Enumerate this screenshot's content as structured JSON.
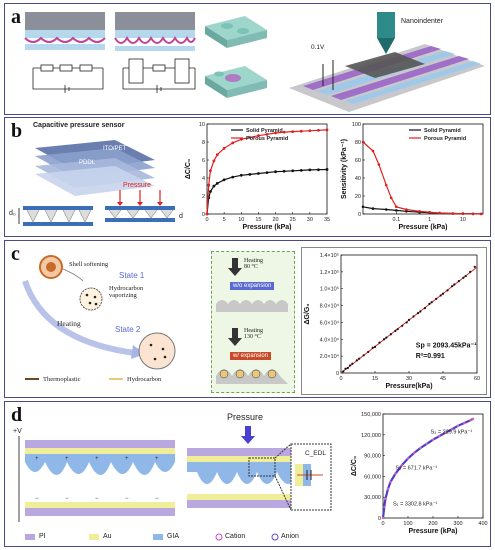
{
  "panels": {
    "a": {
      "letter": "a",
      "nanoindenter_label": "Nanoindenter",
      "voltage_label": "0.1V",
      "circuit1": [
        "R",
        "R",
        "R"
      ],
      "circuit2": [
        "R",
        "R",
        "R"
      ]
    },
    "b": {
      "letter": "b",
      "sensor_title": "Capacitive pressure sensor",
      "layer1": "ITO/PET",
      "layer2": "PDDL",
      "pressure_label": "Pressure",
      "d0_label": "d₀",
      "d_label": "d"
    },
    "c": {
      "letter": "c",
      "shell_softening": "Shell softening",
      "state1": "State 1",
      "hydrocarbon_vaporizing": "Hydrocarbon\nvaporizing",
      "heating": "Heating",
      "state2": "State 2",
      "heating_80": "Heating\n80 °C",
      "wo_expansion": "w/o expansion",
      "heating_130": "Heating\n130 °C",
      "w_expansion": "w/ expansion",
      "legend_thermoplastic": "Thermoplastic",
      "legend_hydrocarbon": "Hydrocarbon"
    },
    "d": {
      "letter": "d",
      "plus_v": "+V",
      "pressure_label": "Pressure",
      "cedl_label": "C_EDL",
      "legend": [
        "PI",
        "Au",
        "GIA",
        "Cation",
        "Anion"
      ]
    }
  },
  "colors": {
    "border": "#4a4a8a",
    "black_series": "#111111",
    "red_series": "#e02020",
    "purple_pi": "#b9a8e0",
    "yellow_au": "#f1ee9a",
    "blue_gia": "#8fb8e8"
  },
  "chart_data": [
    {
      "id": "b1",
      "type": "line",
      "xlabel": "Pressure (kPa)",
      "ylabel": "ΔC/C₀",
      "xlim": [
        0,
        35
      ],
      "ylim": [
        0,
        10
      ],
      "xticks": [
        "0",
        "5",
        "10",
        "15",
        "20",
        "25",
        "30",
        "35"
      ],
      "yticks": [
        "0",
        "2",
        "4",
        "6",
        "8",
        "10"
      ],
      "series": [
        {
          "name": "Solid Pyramid",
          "color": "#111111",
          "x": [
            0,
            0.5,
            1,
            2,
            3,
            5,
            7.5,
            10,
            12.5,
            15,
            17.5,
            20,
            22.5,
            25,
            27.5,
            30,
            32.5,
            35
          ],
          "y": [
            0,
            1.8,
            2.5,
            3.1,
            3.4,
            3.8,
            4.1,
            4.3,
            4.4,
            4.5,
            4.6,
            4.7,
            4.75,
            4.8,
            4.85,
            4.9,
            4.92,
            4.95
          ]
        },
        {
          "name": "Porous Pyramid",
          "color": "#e02020",
          "x": [
            0,
            0.5,
            1,
            2,
            3,
            5,
            7.5,
            10,
            12.5,
            15,
            17.5,
            20,
            22.5,
            25,
            27.5,
            30,
            32.5,
            35
          ],
          "y": [
            0,
            3.2,
            4.8,
            5.9,
            6.6,
            7.3,
            7.9,
            8.3,
            8.5,
            8.7,
            8.85,
            9.0,
            9.1,
            9.15,
            9.2,
            9.25,
            9.3,
            9.35
          ]
        }
      ]
    },
    {
      "id": "b2",
      "type": "line",
      "xlabel": "Pressure (kPa)",
      "ylabel": "Sensitivity (kPa⁻¹)",
      "xscale": "log",
      "xlim": [
        0.01,
        40
      ],
      "ylim": [
        0,
        100
      ],
      "xticks": [
        "0.1",
        "1",
        "10"
      ],
      "yticks": [
        "0",
        "20",
        "40",
        "60",
        "80",
        "100"
      ],
      "series": [
        {
          "name": "Solid Pyramid",
          "color": "#111111",
          "x": [
            0.01,
            0.02,
            0.05,
            0.1,
            0.2,
            0.5,
            1,
            2,
            5,
            10,
            20,
            35
          ],
          "y": [
            8,
            6,
            5,
            4,
            3,
            2,
            1.5,
            1,
            0.5,
            0.3,
            0.2,
            0.1
          ]
        },
        {
          "name": "Porous Pyramid",
          "color": "#e02020",
          "x": [
            0.01,
            0.02,
            0.03,
            0.05,
            0.07,
            0.1,
            0.2,
            0.5,
            1,
            2,
            5,
            10,
            20,
            35
          ],
          "y": [
            80,
            70,
            55,
            32,
            18,
            8,
            5,
            3,
            2,
            1,
            0.5,
            0.3,
            0.2,
            0.1
          ]
        }
      ]
    },
    {
      "id": "c1",
      "type": "scatter",
      "xlabel": "Pressure(kPa)",
      "ylabel": "ΔG/G₀",
      "xlim": [
        0,
        60
      ],
      "ylim": [
        0,
        140000
      ],
      "xticks": [
        "0",
        "15",
        "30",
        "45",
        "60"
      ],
      "yticks": [
        "0",
        "2.0×10⁴",
        "4.0×10⁴",
        "6.0×10⁴",
        "8.0×10⁴",
        "1.0×10⁵",
        "1.2×10⁵",
        "1.4×10⁵"
      ],
      "annotation_sp": "Sp = 2093.45kPa⁻¹",
      "annotation_r2": "R²=0.991",
      "points_x": [
        1,
        2,
        3,
        4,
        5,
        7,
        8,
        10,
        12,
        14,
        15,
        17,
        19,
        20,
        22,
        24,
        25,
        27,
        29,
        30,
        32,
        34,
        35,
        37,
        39,
        40,
        42,
        44,
        45,
        47,
        49,
        50,
        52,
        54,
        55,
        57,
        59
      ],
      "points_y": [
        2000,
        5000,
        6000,
        9000,
        11000,
        15000,
        17000,
        21000,
        25000,
        30000,
        31000,
        36000,
        40000,
        42000,
        46000,
        50000,
        52000,
        56000,
        60000,
        63000,
        67000,
        71000,
        73000,
        77000,
        82000,
        84000,
        88000,
        92000,
        94000,
        98000,
        103000,
        105000,
        109000,
        113000,
        115000,
        120000,
        126000
      ],
      "fit_x": [
        0,
        60
      ],
      "fit_y": [
        0,
        125607
      ]
    },
    {
      "id": "d1",
      "type": "line",
      "xlabel": "Pressure (kPa)",
      "ylabel": "ΔC/C₀",
      "xlim": [
        0,
        400
      ],
      "ylim": [
        0,
        150000
      ],
      "xticks": [
        "0",
        "100",
        "200",
        "300",
        "400"
      ],
      "yticks": [
        "0",
        "30,000",
        "60,000",
        "90,000",
        "120,000",
        "150,000"
      ],
      "annotations": [
        "S₁ = 3302.8 kPa⁻¹",
        "S₂ = 671.7 kPa⁻¹",
        "S₃ = 229.9 kPa⁻¹"
      ],
      "x": [
        0,
        5,
        10,
        20,
        30,
        50,
        75,
        100,
        125,
        150,
        175,
        200,
        225,
        250,
        275,
        300,
        325,
        350,
        360
      ],
      "y": [
        0,
        16000,
        28000,
        42000,
        52000,
        64000,
        76000,
        86000,
        94000,
        101000,
        107000,
        113000,
        118000,
        123000,
        128000,
        133000,
        137000,
        141000,
        143000
      ]
    }
  ]
}
